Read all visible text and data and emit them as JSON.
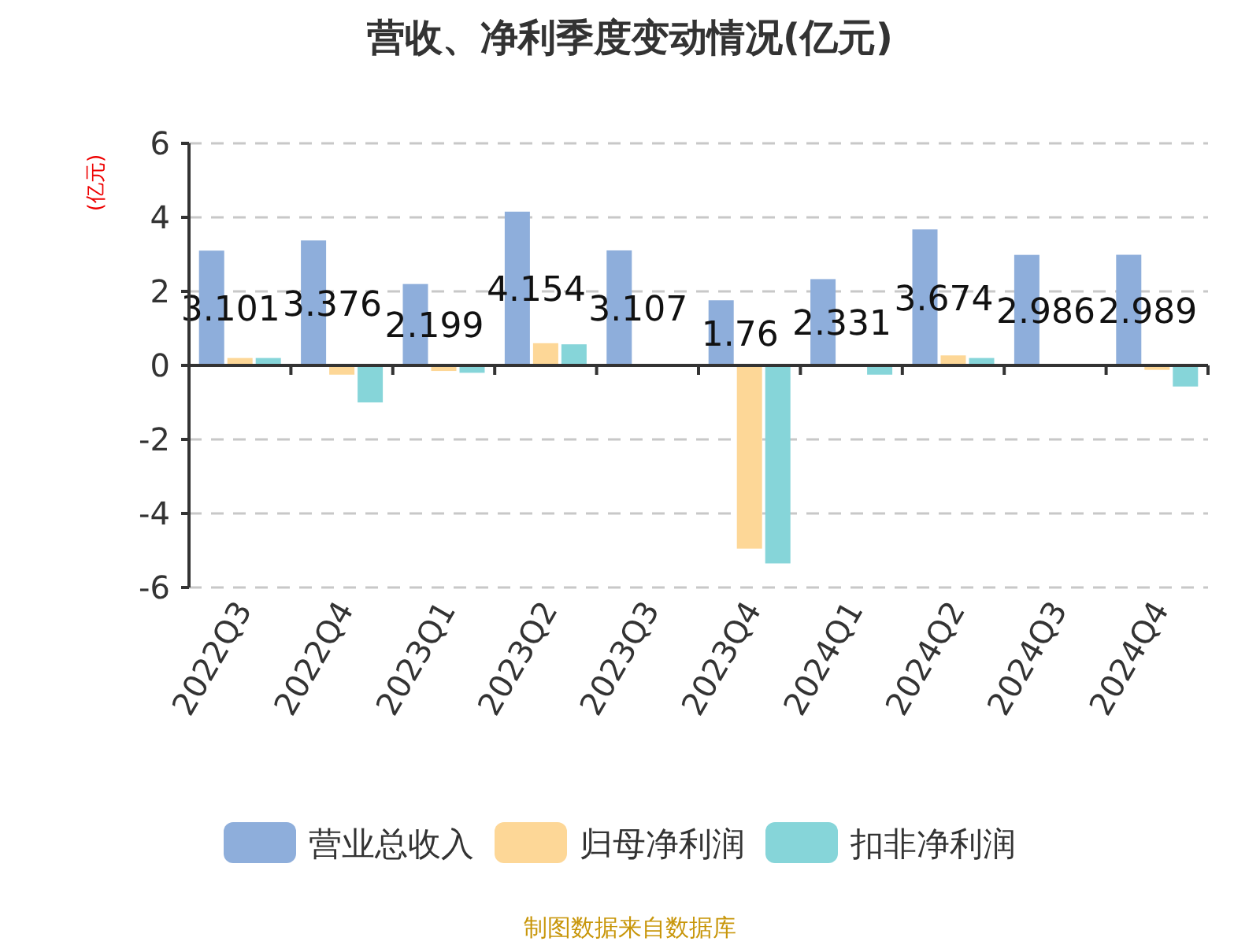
{
  "chart_data": {
    "type": "bar",
    "title": "营收、净利季度变动情况(亿元)",
    "ylabel": "(亿元)",
    "categories": [
      "2022Q3",
      "2022Q4",
      "2023Q1",
      "2023Q2",
      "2023Q3",
      "2023Q4",
      "2024Q1",
      "2024Q2",
      "2024Q3",
      "2024Q4"
    ],
    "series": [
      {
        "name": "营业总收入",
        "color": "#8eaedb",
        "values": [
          3.101,
          3.376,
          2.199,
          4.154,
          3.107,
          1.76,
          2.331,
          3.674,
          2.986,
          2.989
        ],
        "value_labels": [
          "3.101",
          "3.376",
          "2.199",
          "4.154",
          "3.107",
          "1.76",
          "2.331",
          "3.674",
          "2.986",
          "2.989"
        ]
      },
      {
        "name": "归母净利润",
        "color": "#fdd797",
        "values": [
          0.2,
          -0.25,
          -0.15,
          0.6,
          null,
          -4.95,
          null,
          0.27,
          null,
          -0.12
        ]
      },
      {
        "name": "扣非净利润",
        "color": "#86d5d9",
        "values": [
          0.2,
          -1.0,
          -0.2,
          0.57,
          null,
          -5.35,
          -0.25,
          0.2,
          null,
          -0.57
        ]
      }
    ],
    "ylim": [
      -6,
      6
    ],
    "yticks": [
      -6,
      -4,
      -2,
      0,
      2,
      4,
      6
    ],
    "grid": "y",
    "legend": "bottom",
    "annotations": [
      "制图数据来自数据库"
    ]
  }
}
